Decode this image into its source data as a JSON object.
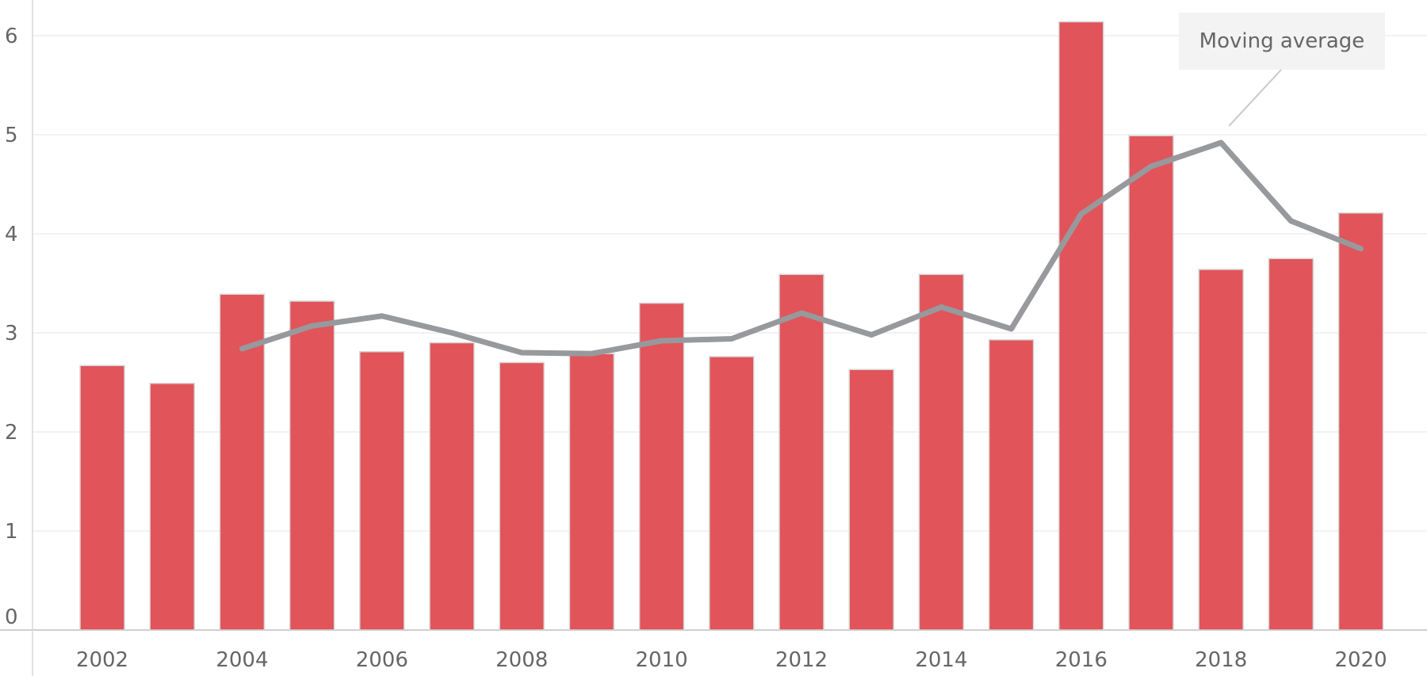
{
  "chart_data": {
    "type": "bar",
    "categories": [
      "2002",
      "2003",
      "2004",
      "2005",
      "2006",
      "2007",
      "2008",
      "2009",
      "2010",
      "2011",
      "2012",
      "2013",
      "2014",
      "2015",
      "2016",
      "2017",
      "2018",
      "2019",
      "2020"
    ],
    "x_tick_labels": [
      "2002",
      "2004",
      "2006",
      "2008",
      "2010",
      "2012",
      "2014",
      "2016",
      "2018",
      "2020"
    ],
    "y_tick_labels": [
      "0",
      "1",
      "2",
      "3",
      "4",
      "5",
      "6"
    ],
    "series": [
      {
        "type": "bar",
        "color": "#e1545a",
        "values": [
          2.67,
          2.49,
          3.39,
          3.32,
          2.81,
          2.9,
          2.7,
          2.79,
          3.3,
          2.76,
          3.59,
          2.63,
          3.59,
          2.93,
          6.14,
          4.99,
          3.64,
          3.75,
          4.21
        ]
      },
      {
        "name": "Moving average",
        "type": "line",
        "color": "#97999c",
        "values": [
          null,
          null,
          2.84,
          3.07,
          3.17,
          3.0,
          2.8,
          2.79,
          2.92,
          2.94,
          3.2,
          2.98,
          3.26,
          3.04,
          4.2,
          4.68,
          4.92,
          4.13,
          3.85
        ]
      }
    ],
    "annotations": [
      {
        "text": "Moving average",
        "target_category": "2018",
        "series": "Moving average"
      }
    ],
    "title": "",
    "xlabel": "",
    "ylabel": "",
    "ylim": [
      0,
      6
    ],
    "grid": true,
    "legend": "none"
  }
}
